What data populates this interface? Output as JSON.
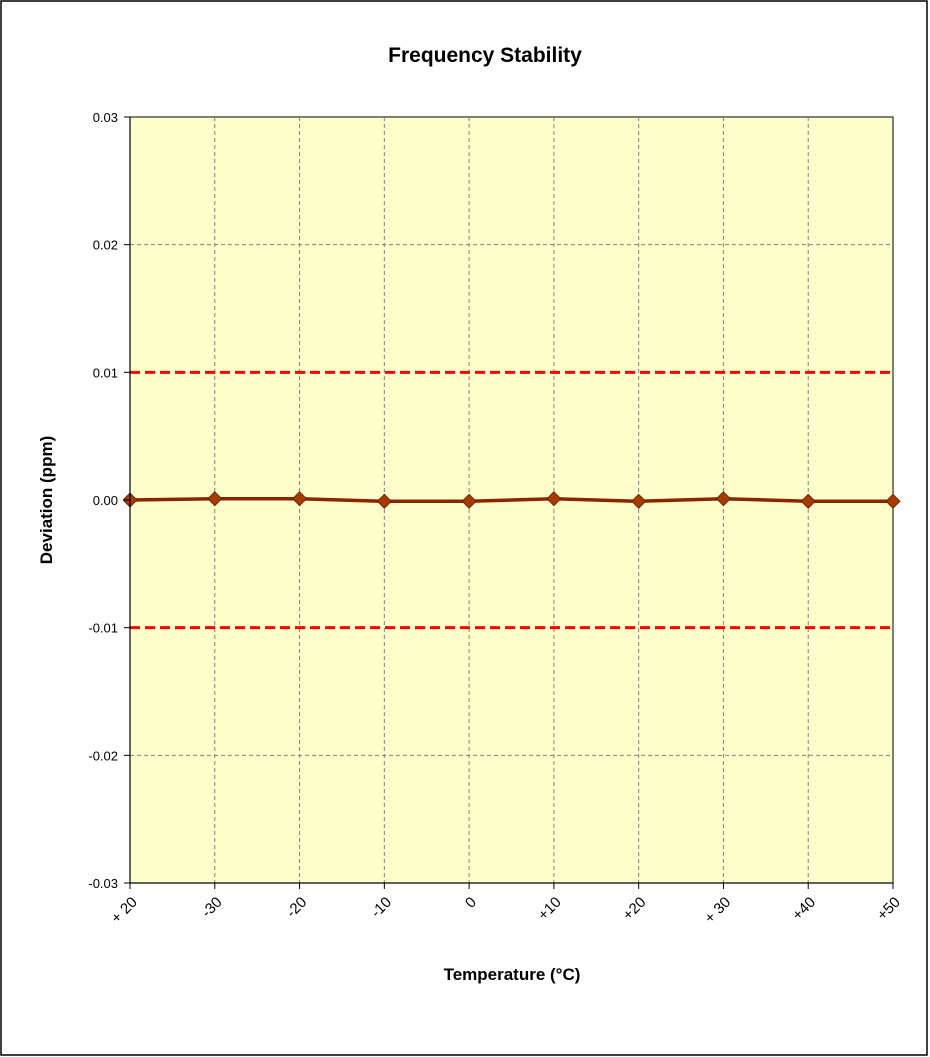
{
  "chart_data": {
    "type": "line",
    "title": "Frequency Stability",
    "xlabel": "Temperature (°C)",
    "ylabel": "Deviation (ppm)",
    "categories": [
      "+ 20",
      "-30",
      "-20",
      "-10",
      "0",
      "+10",
      "+20",
      "+ 30",
      "+40",
      "+50"
    ],
    "series": [
      {
        "values": [
          0.0,
          0.0001,
          0.0001,
          -0.0001,
          -0.0001,
          0.0001,
          -0.0001,
          0.0001,
          -0.0001,
          -0.0001
        ]
      }
    ],
    "limit_lines": [
      0.01,
      -0.01
    ],
    "ylim": [
      -0.03,
      0.03
    ],
    "ytick_values": [
      0.03,
      0.02,
      0.01,
      0.0,
      -0.01,
      -0.02,
      -0.03
    ],
    "ytick_labels": [
      "0.03",
      "0.02",
      "0.01",
      "0.00",
      "-0.01",
      "-0.02",
      "-0.03"
    ],
    "grid": true,
    "legend": "none",
    "colors": {
      "plot_background": "#FFFFCC",
      "series_line": "#8B2500",
      "series_marker": "#A63A00",
      "limit_line": "#FF0000",
      "grid_line": "#808080"
    }
  }
}
